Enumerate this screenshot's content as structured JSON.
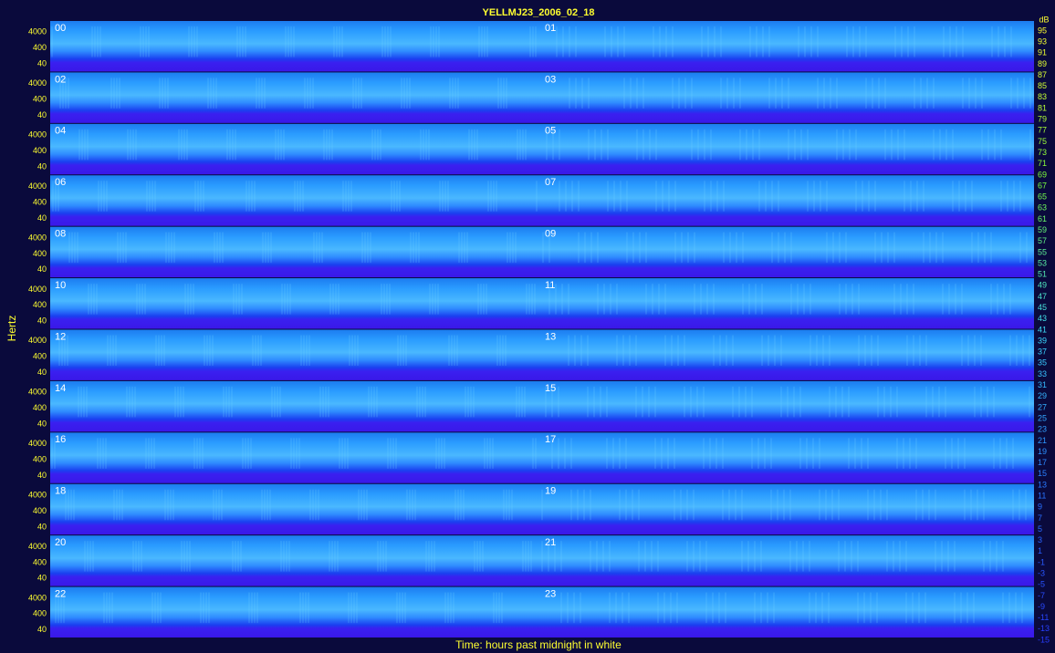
{
  "chart_data": {
    "type": "spectrogram",
    "title": "YELLMJ23_2006_02_18",
    "ylabel": "Hertz",
    "xlabel": "Time: hours past midnight in white",
    "panels": [
      "00",
      "01",
      "02",
      "03",
      "04",
      "05",
      "06",
      "07",
      "08",
      "09",
      "10",
      "11",
      "12",
      "13",
      "14",
      "15",
      "16",
      "17",
      "18",
      "19",
      "20",
      "21",
      "22",
      "23"
    ],
    "ylim": [
      20,
      12000
    ],
    "log_scale": true,
    "yticks": [
      40,
      400,
      4000
    ],
    "colorbar_label": "dB",
    "colorbar_ticks": [
      95,
      93,
      91,
      89,
      87,
      85,
      83,
      81,
      79,
      77,
      75,
      73,
      71,
      69,
      67,
      65,
      63,
      61,
      59,
      57,
      55,
      53,
      51,
      49,
      47,
      45,
      43,
      41,
      39,
      37,
      35,
      33,
      31,
      29,
      27,
      25,
      23,
      21,
      19,
      17,
      15,
      13,
      11,
      9,
      7,
      5,
      3,
      1,
      -1,
      -3,
      -5,
      -7,
      -9,
      -11,
      -13,
      -15
    ]
  }
}
